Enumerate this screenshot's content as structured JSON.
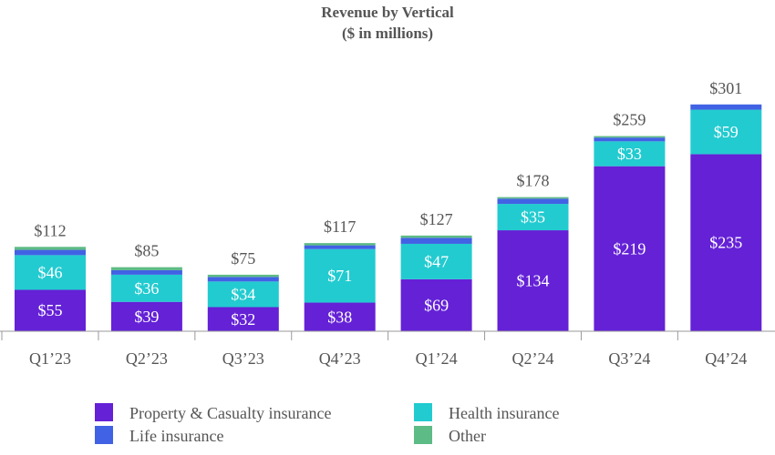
{
  "chart_data": {
    "type": "bar",
    "stacked": true,
    "title": "Revenue by Vertical",
    "subtitle": "($ in millions)",
    "categories": [
      "Q1’23",
      "Q2’23",
      "Q3’23",
      "Q4’23",
      "Q1’24",
      "Q2’24",
      "Q3’24",
      "Q4’24"
    ],
    "series": [
      {
        "name": "Property & Casualty insurance",
        "color": "#6421D6",
        "values": [
          55,
          39,
          32,
          38,
          69,
          134,
          219,
          235
        ],
        "labels_shown": true
      },
      {
        "name": "Health insurance",
        "color": "#22CBD0",
        "values": [
          46,
          36,
          34,
          71,
          47,
          35,
          33,
          59
        ],
        "labels_shown": true
      },
      {
        "name": "Life insurance",
        "color": "#4162E4",
        "values": [
          7,
          6,
          6,
          5,
          8,
          7,
          5,
          7
        ],
        "labels_shown": false
      },
      {
        "name": "Other",
        "color": "#5DBB85",
        "values": [
          4,
          4,
          3,
          3,
          3,
          2,
          2,
          0
        ],
        "labels_shown": false
      }
    ],
    "totals": [
      112,
      85,
      75,
      117,
      127,
      178,
      259,
      301
    ],
    "value_prefix": "$",
    "grid": false,
    "legend_position": "bottom",
    "ylim": [
      0,
      301
    ]
  }
}
